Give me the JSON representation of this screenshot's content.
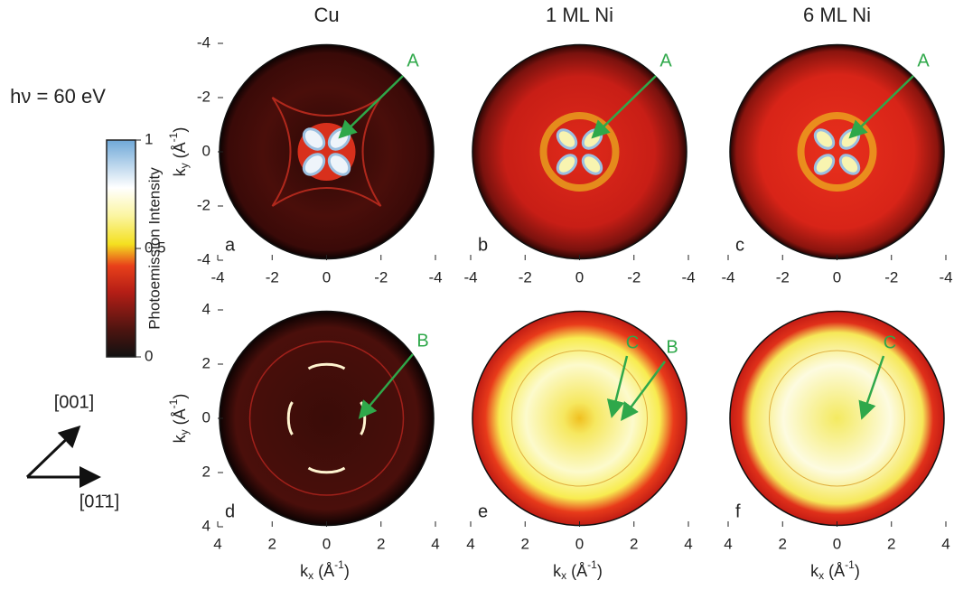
{
  "photon_energy": "hν = 60 eV",
  "colorbar": {
    "label": "Photoemission Intensity",
    "ticks": [
      1,
      0.5,
      0
    ]
  },
  "columns": [
    "Cu",
    "1 ML Ni",
    "6 ML Ni"
  ],
  "axes": {
    "xlabel": {
      "main": "k",
      "sub": "x",
      "unit": " (Å",
      "sup": "-1",
      "close": ")"
    },
    "ylabel": {
      "main": "k",
      "sub": "y",
      "unit": " (Å",
      "sup": "-1",
      "close": ")"
    },
    "top_ticks": [
      -4,
      -2,
      0,
      -2,
      -4
    ],
    "bottom_ticks": [
      4,
      2,
      0,
      2,
      4
    ]
  },
  "directions": [
    "[001]",
    "[01̄1]"
  ],
  "panels": [
    {
      "letter": "a",
      "annotations": [
        "A"
      ]
    },
    {
      "letter": "b",
      "annotations": [
        "A"
      ]
    },
    {
      "letter": "c",
      "annotations": [
        "A"
      ]
    },
    {
      "letter": "d",
      "annotations": [
        "B"
      ]
    },
    {
      "letter": "e",
      "annotations": [
        "C",
        "B"
      ]
    },
    {
      "letter": "f",
      "annotations": [
        "C"
      ]
    }
  ]
}
